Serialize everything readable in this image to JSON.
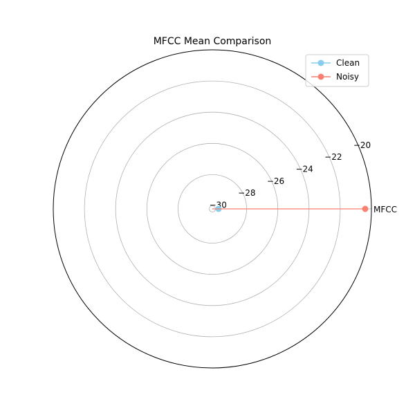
{
  "chart_data": {
    "type": "radar",
    "title": "MFCC Mean Comparison",
    "categories": [
      "MFCC"
    ],
    "rlim": [
      -30.2,
      -20
    ],
    "r_ticks": [
      -30,
      -28,
      -26,
      -24,
      -22,
      -20
    ],
    "r_tick_labels": [
      "−30",
      "−28",
      "−26",
      "−24",
      "−22",
      "−20"
    ],
    "grid": true,
    "legend_position": "top-right",
    "series": [
      {
        "name": "Clean",
        "values": [
          -29.8
        ],
        "color": "#87CEEB"
      },
      {
        "name": "Noisy",
        "values": [
          -20.4
        ],
        "color": "#FA8072"
      }
    ]
  }
}
